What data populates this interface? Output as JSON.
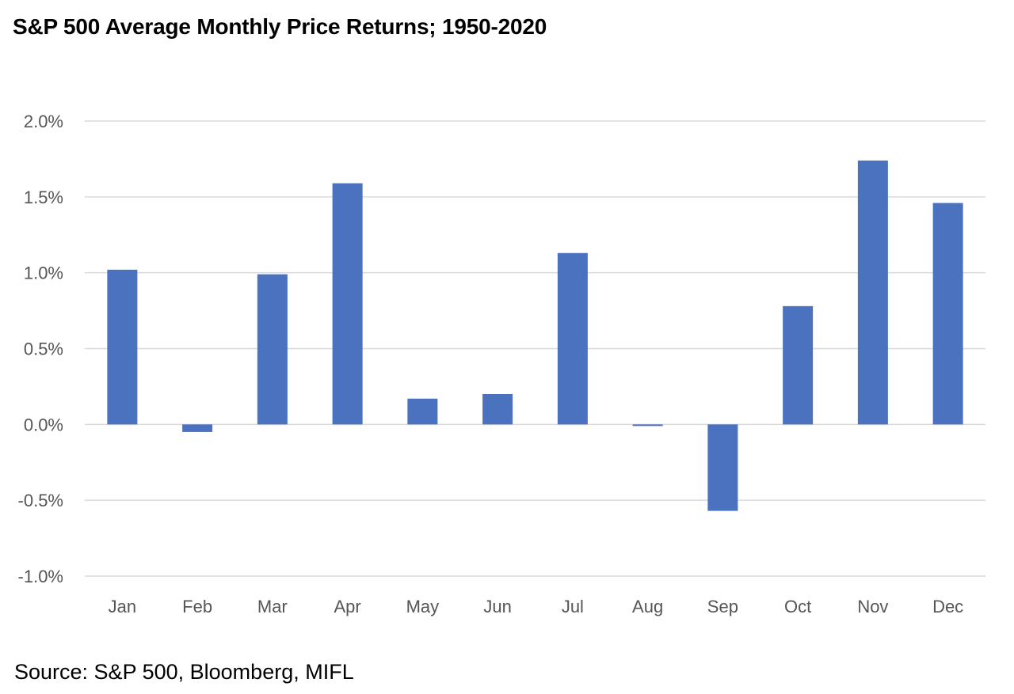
{
  "title": "S&P 500 Average Monthly Price Returns; 1950-2020",
  "source": "Source: S&P 500, Bloomberg, MIFL",
  "chart_data": {
    "type": "bar",
    "categories": [
      "Jan",
      "Feb",
      "Mar",
      "Apr",
      "May",
      "Jun",
      "Jul",
      "Aug",
      "Sep",
      "Oct",
      "Nov",
      "Dec"
    ],
    "values": [
      1.02,
      -0.05,
      0.99,
      1.59,
      0.17,
      0.2,
      1.13,
      -0.01,
      -0.57,
      0.78,
      1.74,
      1.46
    ],
    "unit": "%",
    "ylim": [
      -1.0,
      2.0
    ],
    "yticks": [
      2.0,
      1.5,
      1.0,
      0.5,
      0.0,
      -0.5,
      -1.0
    ],
    "ytick_labels": [
      "2.0%",
      "1.5%",
      "1.0%",
      "0.5%",
      "0.0%",
      "-0.5%",
      "-1.0%"
    ],
    "grid": true,
    "legend": "none",
    "bar_color": "#4a72bf",
    "xlabel": "",
    "ylabel": ""
  }
}
